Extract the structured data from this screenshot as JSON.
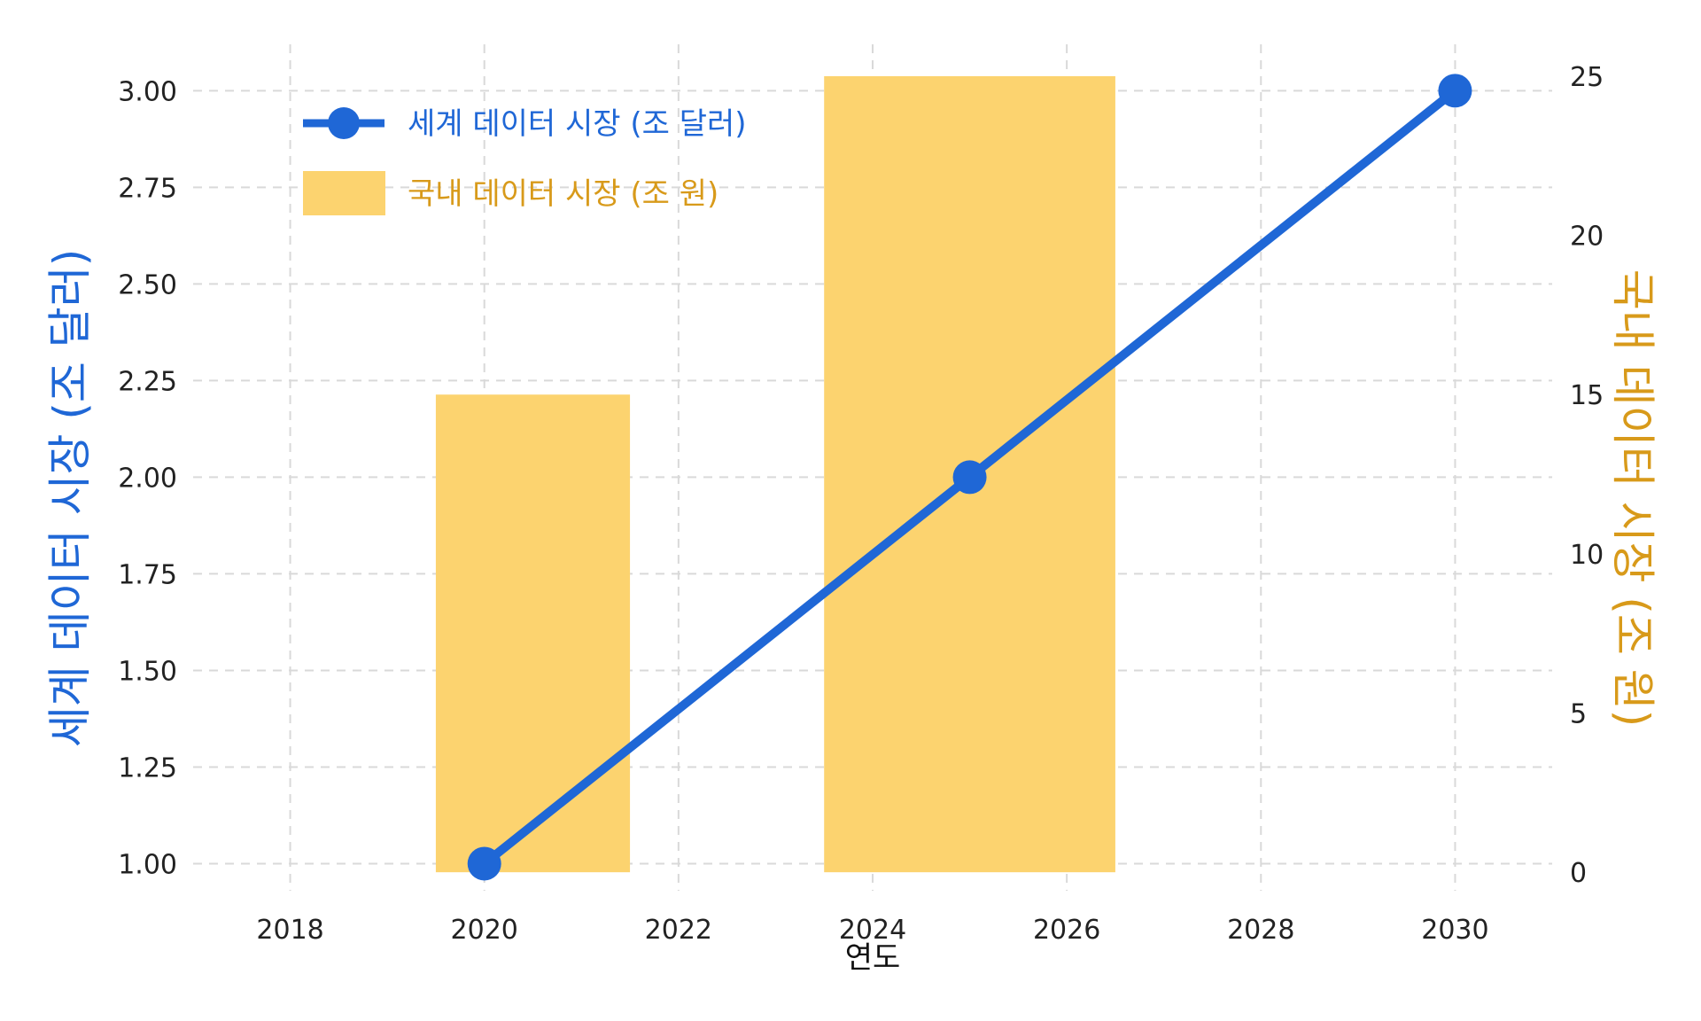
{
  "chart_data": {
    "type": "bar",
    "xlabel": "연도",
    "ylabel_left": "세계 데이터 시장 (조 달러)",
    "ylabel_right": "국내 데이터 시장 (조 원)",
    "xlim": [
      2017,
      2031
    ],
    "ylim_left": [
      0.93,
      3.12
    ],
    "ylim_right": [
      -0.58,
      26.0
    ],
    "x_ticks": [
      2018,
      2020,
      2022,
      2024,
      2026,
      2028,
      2030
    ],
    "y_left_ticks": [
      1.0,
      1.25,
      1.5,
      1.75,
      2.0,
      2.25,
      2.5,
      2.75,
      3.0
    ],
    "y_right_ticks": [
      0,
      5,
      10,
      15,
      20,
      25
    ],
    "grid": true,
    "legend_position": "top-left",
    "series": [
      {
        "name": "세계 데이터 시장 (조 달러)",
        "kind": "line",
        "axis": "left",
        "color": "#1f67d6",
        "x": [
          2020,
          2025,
          2030
        ],
        "y": [
          1.0,
          2.0,
          3.0
        ]
      },
      {
        "name": "국내 데이터 시장 (조 원)",
        "kind": "bar",
        "axis": "right",
        "color": "#fcd36f",
        "x": [
          2020.5,
          2025
        ],
        "widths": [
          2,
          3
        ],
        "y": [
          15,
          25
        ]
      }
    ],
    "colors": {
      "left_axis_title": "#1f67d6",
      "right_axis_title": "#d89a1a",
      "legend_bar_text": "#d89a1a",
      "grid": "#d9d9d9"
    }
  }
}
